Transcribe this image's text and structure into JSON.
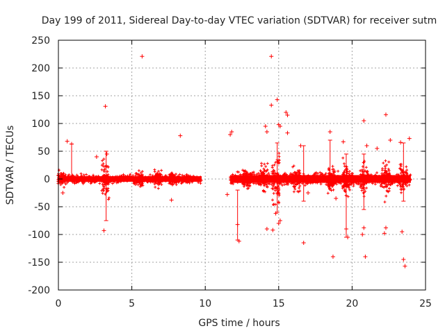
{
  "chart_data": {
    "type": "scatter",
    "title": "Day 199 of 2011, Sidereal Day-to-day VTEC variation (SDTVAR) for receiver sutm",
    "xlabel": "GPS time / hours",
    "ylabel": "SDTVAR / TECUs",
    "xlim": [
      0,
      25
    ],
    "ylim": [
      -200,
      250
    ],
    "x_ticks": [
      0,
      5,
      10,
      15,
      20,
      25
    ],
    "y_ticks": [
      -200,
      -150,
      -100,
      -50,
      0,
      50,
      100,
      150,
      200,
      250
    ],
    "grid": true,
    "marker": "+",
    "series_color": "#ff0000",
    "dense_bands": [
      {
        "x_start": 0.0,
        "x_end": 9.75,
        "center": 0,
        "half_width": 5
      },
      {
        "x_start": 11.7,
        "x_end": 24.0,
        "center": 0,
        "half_width": 7
      }
    ],
    "active_regions": [
      {
        "x": 0.2,
        "spread": 18
      },
      {
        "x": 3.2,
        "spread": 45
      },
      {
        "x": 5.5,
        "spread": 18
      },
      {
        "x": 6.8,
        "spread": 22
      },
      {
        "x": 7.8,
        "spread": 14
      },
      {
        "x": 12.8,
        "spread": 25
      },
      {
        "x": 14.0,
        "spread": 35
      },
      {
        "x": 14.8,
        "spread": 60
      },
      {
        "x": 16.2,
        "spread": 30
      },
      {
        "x": 18.6,
        "spread": 30
      },
      {
        "x": 19.6,
        "spread": 45
      },
      {
        "x": 20.8,
        "spread": 40
      },
      {
        "x": 22.3,
        "spread": 45
      },
      {
        "x": 23.5,
        "spread": 35
      }
    ],
    "outliers": [
      {
        "x": 5.7,
        "y": 221
      },
      {
        "x": 14.5,
        "y": 221
      },
      {
        "x": 3.2,
        "y": 131
      },
      {
        "x": 14.5,
        "y": 133
      },
      {
        "x": 14.9,
        "y": 143
      },
      {
        "x": 15.5,
        "y": 120
      },
      {
        "x": 15.6,
        "y": 115
      },
      {
        "x": 14.1,
        "y": 95
      },
      {
        "x": 14.2,
        "y": 85
      },
      {
        "x": 15.0,
        "y": 98
      },
      {
        "x": 15.1,
        "y": 95
      },
      {
        "x": 15.6,
        "y": 83
      },
      {
        "x": 11.8,
        "y": 85
      },
      {
        "x": 11.7,
        "y": 80
      },
      {
        "x": 8.3,
        "y": 78
      },
      {
        "x": 0.6,
        "y": 68
      },
      {
        "x": 0.9,
        "y": 63
      },
      {
        "x": 18.5,
        "y": 85
      },
      {
        "x": 20.8,
        "y": 105
      },
      {
        "x": 22.3,
        "y": 116
      },
      {
        "x": 23.9,
        "y": 73
      },
      {
        "x": 16.5,
        "y": 60
      },
      {
        "x": 19.4,
        "y": 67
      },
      {
        "x": 21.0,
        "y": 60
      },
      {
        "x": 21.7,
        "y": 55
      },
      {
        "x": 22.6,
        "y": 70
      },
      {
        "x": 23.3,
        "y": 66
      },
      {
        "x": 2.6,
        "y": 40
      },
      {
        "x": 3.3,
        "y": 45
      },
      {
        "x": 3.1,
        "y": -93
      },
      {
        "x": 14.6,
        "y": -92
      },
      {
        "x": 14.2,
        "y": -90
      },
      {
        "x": 15.0,
        "y": -80
      },
      {
        "x": 15.1,
        "y": -75
      },
      {
        "x": 14.8,
        "y": -62
      },
      {
        "x": 16.7,
        "y": -115
      },
      {
        "x": 18.7,
        "y": -140
      },
      {
        "x": 20.9,
        "y": -140
      },
      {
        "x": 23.5,
        "y": -145
      },
      {
        "x": 23.6,
        "y": -157
      },
      {
        "x": 23.4,
        "y": -95
      },
      {
        "x": 19.7,
        "y": -105
      },
      {
        "x": 19.6,
        "y": -90
      },
      {
        "x": 20.7,
        "y": -100
      },
      {
        "x": 20.8,
        "y": -88
      },
      {
        "x": 22.2,
        "y": -98
      },
      {
        "x": 22.3,
        "y": -88
      },
      {
        "x": 12.2,
        "y": -82
      },
      {
        "x": 12.3,
        "y": -112
      },
      {
        "x": 11.5,
        "y": -28
      },
      {
        "x": 7.7,
        "y": -38
      },
      {
        "x": 0.3,
        "y": -25
      },
      {
        "x": 17.0,
        "y": -25
      },
      {
        "x": 18.9,
        "y": -35
      }
    ],
    "vertical_bars": [
      {
        "x": 0.9,
        "y_low": 5,
        "y_high": 63
      },
      {
        "x": 3.25,
        "y_low": -75,
        "y_high": 50
      },
      {
        "x": 12.2,
        "y_low": -110,
        "y_high": -20
      },
      {
        "x": 14.9,
        "y_low": -60,
        "y_high": 65
      },
      {
        "x": 16.7,
        "y_low": -40,
        "y_high": 60
      },
      {
        "x": 18.5,
        "y_low": -10,
        "y_high": 70
      },
      {
        "x": 19.6,
        "y_low": -105,
        "y_high": 45
      },
      {
        "x": 20.8,
        "y_low": -55,
        "y_high": 45
      },
      {
        "x": 23.5,
        "y_low": -40,
        "y_high": 65
      }
    ]
  }
}
